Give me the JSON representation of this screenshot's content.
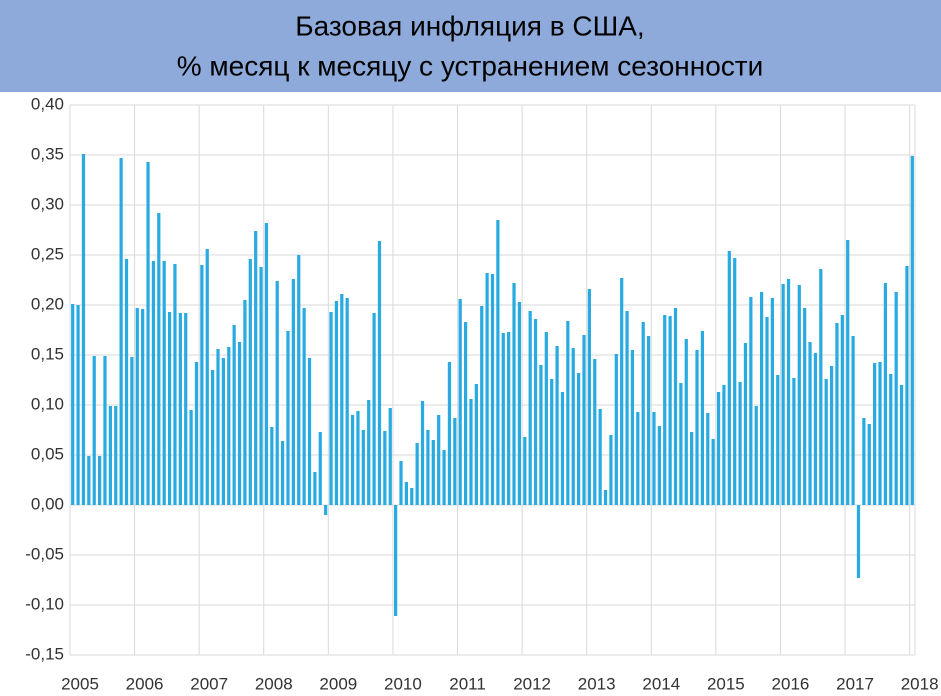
{
  "chart_data": {
    "type": "bar",
    "title": "Базовая инфляция в США,",
    "subtitle": "% месяц к месяцу с устранением сезонности",
    "color": "#29abe2",
    "grid": true,
    "ylim": [
      -0.15,
      0.4
    ],
    "yticks": [
      {
        "value": -0.15,
        "label": "-0,15"
      },
      {
        "value": -0.1,
        "label": "-0,10"
      },
      {
        "value": -0.05,
        "label": "-0,05"
      },
      {
        "value": 0,
        "label": "0,00"
      },
      {
        "value": 0.05,
        "label": "0,05"
      },
      {
        "value": 0.1,
        "label": "0,10"
      },
      {
        "value": 0.15,
        "label": "0,15"
      },
      {
        "value": 0.2,
        "label": "0,20"
      },
      {
        "value": 0.25,
        "label": "0,25"
      },
      {
        "value": 0.3,
        "label": "0,30"
      },
      {
        "value": 0.35,
        "label": "0,35"
      },
      {
        "value": 0.4,
        "label": "0,40"
      }
    ],
    "categories": [
      "2005",
      null,
      null,
      null,
      null,
      null,
      null,
      null,
      null,
      null,
      null,
      null,
      "2006",
      null,
      null,
      null,
      null,
      null,
      null,
      null,
      null,
      null,
      null,
      null,
      "2007",
      null,
      null,
      null,
      null,
      null,
      null,
      null,
      null,
      null,
      null,
      null,
      "2008",
      null,
      null,
      null,
      null,
      null,
      null,
      null,
      null,
      null,
      null,
      null,
      "2009",
      null,
      null,
      null,
      null,
      null,
      null,
      null,
      null,
      null,
      null,
      null,
      "2010",
      null,
      null,
      null,
      null,
      null,
      null,
      null,
      null,
      null,
      null,
      null,
      "2011",
      null,
      null,
      null,
      null,
      null,
      null,
      null,
      null,
      null,
      null,
      null,
      "2012",
      null,
      null,
      null,
      null,
      null,
      null,
      null,
      null,
      null,
      null,
      null,
      "2013",
      null,
      null,
      null,
      null,
      null,
      null,
      null,
      null,
      null,
      null,
      null,
      "2014",
      null,
      null,
      null,
      null,
      null,
      null,
      null,
      null,
      null,
      null,
      null,
      "2015",
      null,
      null,
      null,
      null,
      null,
      null,
      null,
      null,
      null,
      null,
      null,
      "2016",
      null,
      null,
      null,
      null,
      null,
      null,
      null,
      null,
      null,
      null,
      null,
      "2017",
      null,
      null,
      null,
      null,
      null,
      null,
      null,
      null,
      null,
      null,
      null,
      "2018"
    ],
    "values": [
      0.201,
      0.2,
      0.351,
      0.049,
      0.149,
      0.049,
      0.149,
      0.099,
      0.099,
      0.347,
      0.246,
      0.148,
      0.197,
      0.196,
      0.343,
      0.244,
      0.292,
      0.244,
      0.193,
      0.241,
      0.192,
      0.192,
      0.095,
      0.143,
      0.24,
      0.256,
      0.135,
      0.156,
      0.147,
      0.158,
      0.18,
      0.163,
      0.205,
      0.246,
      0.274,
      0.238,
      0.282,
      0.078,
      0.224,
      0.064,
      0.174,
      0.226,
      0.25,
      0.197,
      0.147,
      0.033,
      0.073,
      -0.01,
      0.193,
      0.204,
      0.211,
      0.207,
      0.09,
      0.094,
      0.075,
      0.105,
      0.192,
      0.264,
      0.074,
      0.097,
      -0.111,
      0.044,
      0.023,
      0.017,
      0.062,
      0.104,
      0.075,
      0.065,
      0.09,
      0.055,
      0.143,
      0.087,
      0.206,
      0.183,
      0.106,
      0.121,
      0.199,
      0.232,
      0.231,
      0.285,
      0.172,
      0.173,
      0.222,
      0.203,
      0.068,
      0.194,
      0.186,
      0.14,
      0.173,
      0.126,
      0.159,
      0.113,
      0.184,
      0.157,
      0.132,
      0.17,
      0.216,
      0.146,
      0.096,
      0.015,
      0.07,
      0.151,
      0.227,
      0.194,
      0.155,
      0.093,
      0.183,
      0.169,
      0.093,
      0.079,
      0.19,
      0.189,
      0.197,
      0.122,
      0.166,
      0.073,
      0.155,
      0.174,
      0.092,
      0.066,
      0.113,
      0.12,
      0.254,
      0.247,
      0.123,
      0.162,
      0.208,
      0.099,
      0.213,
      0.188,
      0.207,
      0.13,
      0.221,
      0.226,
      0.127,
      0.22,
      0.197,
      0.163,
      0.152,
      0.236,
      0.126,
      0.139,
      0.182,
      0.19,
      0.265,
      0.169,
      -0.073,
      0.087,
      0.081,
      0.142,
      0.143,
      0.222,
      0.131,
      0.213,
      0.12,
      0.239,
      0.349
    ]
  }
}
